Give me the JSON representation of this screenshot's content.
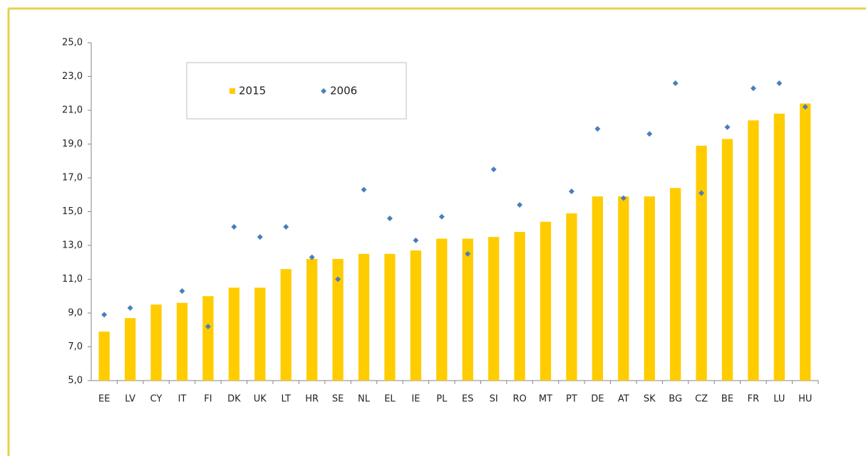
{
  "chart_data": {
    "type": "bar",
    "categories": [
      "EE",
      "LV",
      "CY",
      "IT",
      "FI",
      "DK",
      "UK",
      "LT",
      "HR",
      "SE",
      "NL",
      "EL",
      "IE",
      "PL",
      "ES",
      "SI",
      "RO",
      "MT",
      "PT",
      "DE",
      "AT",
      "SK",
      "BG",
      "CZ",
      "BE",
      "FR",
      "LU",
      "HU"
    ],
    "series": [
      {
        "name": "2015",
        "type": "bar",
        "color": "#ffcc00",
        "values": [
          7.9,
          8.7,
          9.5,
          9.6,
          10.0,
          10.5,
          10.5,
          11.6,
          12.2,
          12.2,
          12.5,
          12.5,
          12.7,
          13.4,
          13.4,
          13.5,
          13.8,
          14.4,
          14.9,
          15.9,
          15.9,
          15.9,
          16.4,
          18.9,
          19.3,
          20.4,
          20.8,
          21.4
        ]
      },
      {
        "name": "2006",
        "type": "scatter",
        "color": "#4a7ebb",
        "values": [
          8.9,
          9.3,
          null,
          10.3,
          8.2,
          14.1,
          13.5,
          14.1,
          12.3,
          11.0,
          16.3,
          14.6,
          13.3,
          14.7,
          12.5,
          17.5,
          15.4,
          null,
          16.2,
          19.9,
          15.8,
          19.6,
          22.6,
          16.1,
          20.0,
          22.3,
          22.6,
          21.2
        ]
      }
    ],
    "ylim": [
      5,
      25
    ],
    "yticks": [
      {
        "value": 5,
        "label": "5,0"
      },
      {
        "value": 7,
        "label": "7,0"
      },
      {
        "value": 9,
        "label": "9,0"
      },
      {
        "value": 11,
        "label": "11,0"
      },
      {
        "value": 13,
        "label": "13,0"
      },
      {
        "value": 15,
        "label": "15,0"
      },
      {
        "value": 17,
        "label": "17,0"
      },
      {
        "value": 19,
        "label": "19,0"
      },
      {
        "value": 21,
        "label": "21,0"
      },
      {
        "value": 23,
        "label": "23,0"
      },
      {
        "value": 25,
        "label": "25,0"
      }
    ],
    "grid": false,
    "legend": "top-left"
  }
}
